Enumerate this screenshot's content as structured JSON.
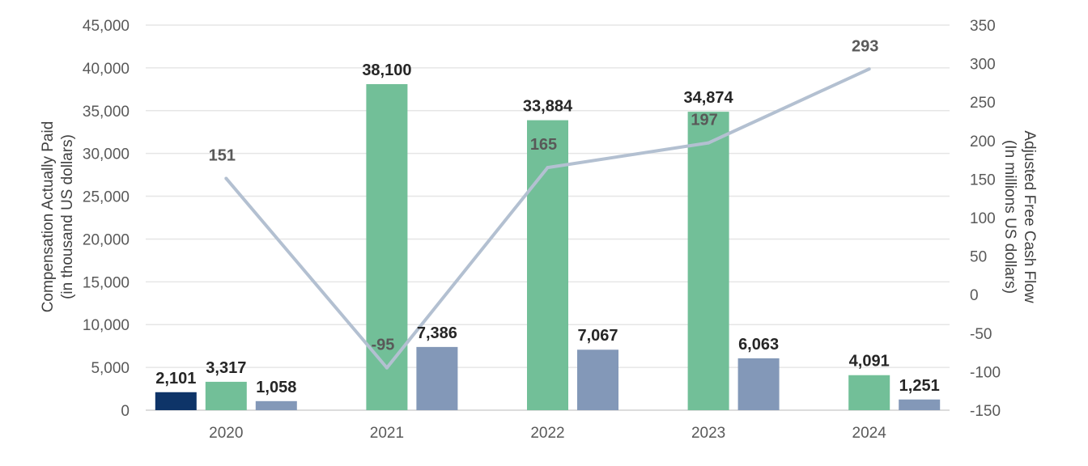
{
  "chart_data": {
    "type": "bar",
    "combo": "bar-line",
    "title": "",
    "categories": [
      "2020",
      "2021",
      "2022",
      "2023",
      "2024"
    ],
    "ylabel": "Compensation Actually Paid\n(in thousand US dollars)",
    "y2label": "Adjusted Free Cash Flow\n(In millions US dollars)",
    "ylim": [
      0,
      45000
    ],
    "yticks": [
      0,
      5000,
      10000,
      15000,
      20000,
      25000,
      30000,
      35000,
      40000,
      45000
    ],
    "ytick_labels": [
      "0",
      "5,000",
      "10,000",
      "15,000",
      "20,000",
      "25,000",
      "30,000",
      "35,000",
      "40,000",
      "45,000"
    ],
    "y2lim": [
      -150,
      350
    ],
    "y2ticks": [
      -150,
      -100,
      -50,
      0,
      50,
      100,
      150,
      200,
      250,
      300,
      350
    ],
    "y2tick_labels": [
      "-150",
      "-100",
      "-50",
      "0",
      "50",
      "100",
      "150",
      "200",
      "250",
      "300",
      "350"
    ],
    "grid": true,
    "series": [
      {
        "name": "Compensation Actually Paid - series 1",
        "kind": "bar",
        "axis": "left",
        "color": "#0e3468",
        "values": [
          2101,
          null,
          null,
          null,
          null
        ],
        "labels": [
          "2,101",
          null,
          null,
          null,
          null
        ]
      },
      {
        "name": "Compensation Actually Paid - series 2",
        "kind": "bar",
        "axis": "left",
        "color": "#72bf98",
        "values": [
          3317,
          38100,
          33884,
          34874,
          4091
        ],
        "labels": [
          "3,317",
          "38,100",
          "33,884",
          "34,874",
          "4,091"
        ]
      },
      {
        "name": "Compensation Actually Paid - series 3",
        "kind": "bar",
        "axis": "left",
        "color": "#8398b8",
        "values": [
          1058,
          7386,
          7067,
          6063,
          1251
        ],
        "labels": [
          "1,058",
          "7,386",
          "7,067",
          "6,063",
          "1,251"
        ]
      },
      {
        "name": "Adjusted Free Cash Flow",
        "kind": "line",
        "axis": "right",
        "color": "#b3c0d1",
        "values": [
          151,
          -95,
          165,
          197,
          293
        ],
        "labels": [
          "151",
          "-95",
          "165",
          "197",
          "293"
        ]
      }
    ]
  }
}
